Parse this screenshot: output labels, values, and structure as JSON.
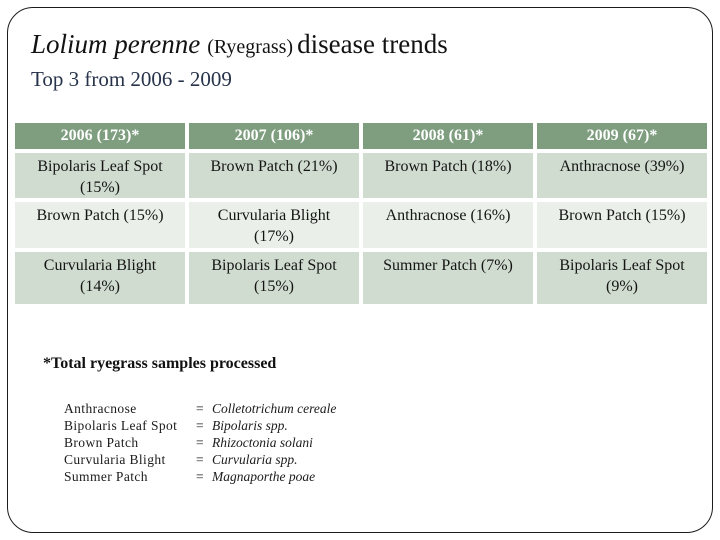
{
  "title": {
    "latin": "Lolium perenne",
    "common": "(Ryegrass)",
    "rest": "disease trends",
    "subtitle": "Top 3 from 2006 - 2009"
  },
  "table": {
    "headers": [
      "2006 (173)*",
      "2007 (106)*",
      "2008 (61)*",
      "2009 (67)*"
    ],
    "rows": [
      [
        "Bipolaris Leaf Spot\n(15%)",
        "Brown Patch (21%)",
        "Brown Patch (18%)",
        "Anthracnose (39%)"
      ],
      [
        "Brown Patch (15%)",
        "Curvularia Blight\n(17%)",
        "Anthracnose (16%)",
        "Brown Patch (15%)"
      ],
      [
        "Curvularia Blight\n(14%)",
        "Bipolaris Leaf Spot\n(15%)",
        "Summer Patch (7%)",
        "Bipolaris Leaf Spot\n(9%)"
      ]
    ]
  },
  "footnote": "*Total ryegrass samples processed",
  "legend": [
    {
      "name": "Anthracnose",
      "eq": "=",
      "scientific": "Colletotrichum cereale"
    },
    {
      "name": "Bipolaris Leaf Spot",
      "eq": "=",
      "scientific": "Bipolaris spp."
    },
    {
      "name": "Brown Patch",
      "eq": "=",
      "scientific": "Rhizoctonia solani"
    },
    {
      "name": "Curvularia Blight",
      "eq": "=",
      "scientific": "Curvularia spp."
    },
    {
      "name": "Summer Patch",
      "eq": "=",
      "scientific": "Magnaporthe poae"
    }
  ],
  "colors": {
    "header_green": "#7e9e7f",
    "row_shaded": "#d1dcd0",
    "row_light": "#eaf0e9",
    "frame_border": "#1c1c1c",
    "header_text": "#ffffff"
  }
}
